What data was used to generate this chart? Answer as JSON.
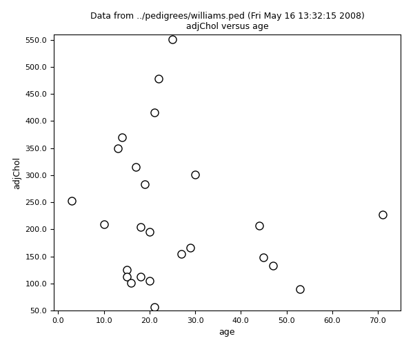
{
  "title_line1": "Data from ../pedigrees/williams.ped (Fri May 16 13:32:15 2008)",
  "title_line2": "adjChol versus age",
  "xlabel": "age",
  "ylabel": "adjChol",
  "x": [
    3,
    10,
    13,
    14,
    15,
    15,
    16,
    17,
    18,
    18,
    19,
    20,
    20,
    21,
    21,
    22,
    25,
    27,
    29,
    30,
    44,
    45,
    47,
    53,
    71
  ],
  "y": [
    253,
    210,
    349,
    370,
    125,
    113,
    101,
    315,
    204,
    112,
    283,
    195,
    105,
    416,
    57,
    478,
    551,
    155,
    166,
    301,
    207,
    148,
    133,
    90,
    227
  ],
  "xlim": [
    -1,
    75
  ],
  "ylim": [
    50,
    560
  ],
  "xticks": [
    0,
    10,
    20,
    30,
    40,
    50,
    60,
    70
  ],
  "yticks": [
    50,
    100,
    150,
    200,
    250,
    300,
    350,
    400,
    450,
    500,
    550
  ],
  "marker": "o",
  "marker_size": 64,
  "marker_facecolor": "white",
  "marker_edgecolor": "black",
  "marker_linewidth": 1.0,
  "title_fontsize": 9,
  "label_fontsize": 9,
  "tick_fontsize": 8,
  "background_color": "white",
  "grid": false,
  "figwidth": 5.99,
  "figheight": 5.0,
  "dpi": 100
}
